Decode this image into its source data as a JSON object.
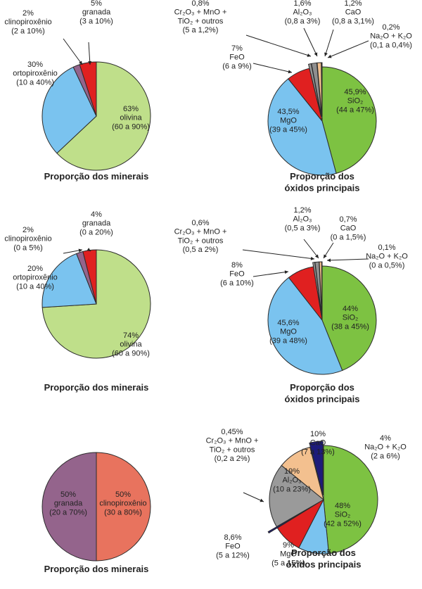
{
  "chart_data": [
    {
      "type": "pie",
      "title": "Proporção dos minerais",
      "colors": [
        "#bfdf8a",
        "#7ac3ef",
        "#94648c",
        "#e02020"
      ],
      "slices": [
        {
          "value": 63,
          "lines": [
            "63%",
            "olivina",
            "(60 a 90%)"
          ]
        },
        {
          "value": 30,
          "lines": [
            "30%",
            "ortopiroxênio",
            "(10 a 40%)"
          ]
        },
        {
          "value": 2,
          "lines": [
            "2%",
            "clinopiroxênio",
            "(2 a 10%)"
          ]
        },
        {
          "value": 5,
          "lines": [
            "5%",
            "granada",
            "(3 a 10%)"
          ]
        }
      ]
    },
    {
      "type": "pie",
      "title": [
        "Proporção dos",
        "óxidos principais"
      ],
      "colors": [
        "#7dc242",
        "#7ac3ef",
        "#e02020",
        "#9a9a9a",
        "#8f8f8f",
        "#f3c08f",
        "#1e1b7a"
      ],
      "slices": [
        {
          "value": 45.9,
          "lines": [
            "45,9%",
            "SiO₂",
            "(44 a 47%)"
          ]
        },
        {
          "value": 43.5,
          "lines": [
            "43,5%",
            "MgO",
            "(39 a 45%)"
          ]
        },
        {
          "value": 7,
          "lines": [
            "7%",
            "FeO",
            "(6 a 9%)"
          ]
        },
        {
          "value": 0.8,
          "lines": [
            "0,8%",
            "Cr₂O₃ + MnO +",
            "TiO₂ + outros",
            "(5 a 1,2%)"
          ]
        },
        {
          "value": 1.6,
          "lines": [
            "1,6%",
            "Al₂O₃",
            "(0,8 a 3%)"
          ]
        },
        {
          "value": 1.2,
          "lines": [
            "1,2%",
            "CaO",
            "(0,8 a 3,1%)"
          ]
        },
        {
          "value": 0.2,
          "lines": [
            "0,2%",
            "Na₂O + K₂O",
            "(0,1 a 0,4%)"
          ]
        }
      ]
    },
    {
      "type": "pie",
      "title": "Proporção dos minerais",
      "colors": [
        "#bfdf8a",
        "#7ac3ef",
        "#94648c",
        "#e02020"
      ],
      "slices": [
        {
          "value": 74,
          "lines": [
            "74%",
            "olivina",
            "(60 a 90%)"
          ]
        },
        {
          "value": 20,
          "lines": [
            "20%",
            "ortopiroxênio",
            "(10 a 40%)"
          ]
        },
        {
          "value": 2,
          "lines": [
            "2%",
            "clinopiroxênio",
            "(0 a 5%)"
          ]
        },
        {
          "value": 4,
          "lines": [
            "4%",
            "granada",
            "(0 a 20%)"
          ]
        }
      ]
    },
    {
      "type": "pie",
      "title": [
        "Proporção dos",
        "óxidos principais"
      ],
      "colors": [
        "#7dc242",
        "#7ac3ef",
        "#e02020",
        "#9a9a9a",
        "#8f8f8f",
        "#f3c08f",
        "#1e1b7a"
      ],
      "slices": [
        {
          "value": 44,
          "lines": [
            "44%",
            "SiO₂",
            "(38 a 45%)"
          ]
        },
        {
          "value": 45.6,
          "lines": [
            "45,6%",
            "MgO",
            "(39 a 48%)"
          ]
        },
        {
          "value": 8,
          "lines": [
            "8%",
            "FeO",
            "(6 a 10%)"
          ]
        },
        {
          "value": 0.6,
          "lines": [
            "0,6%",
            "Cr₂O₃ + MnO +",
            "TiO₂ + outros",
            "(0,5 a 2%)"
          ]
        },
        {
          "value": 1.2,
          "lines": [
            "1,2%",
            "Al₂O₃",
            "(0,5 a 3%)"
          ]
        },
        {
          "value": 0.7,
          "lines": [
            "0,7%",
            "CaO",
            "(0 a 1,5%)"
          ]
        },
        {
          "value": 0.1,
          "lines": [
            "0,1%",
            "Na₂O + K₂O",
            "(0 a 0,5%)"
          ]
        }
      ]
    },
    {
      "type": "pie",
      "title": "Proporção dos minerais",
      "colors": [
        "#e8735e",
        "#94648c"
      ],
      "slices": [
        {
          "value": 50,
          "lines": [
            "50%",
            "granada",
            "(20 a 70%)"
          ]
        },
        {
          "value": 50,
          "lines": [
            "50%",
            "clinopiroxênio",
            "(30 a 80%)"
          ]
        }
      ]
    },
    {
      "type": "pie",
      "title": [
        "Proporção dos",
        "óxidos principais"
      ],
      "colors": [
        "#7dc242",
        "#7ac3ef",
        "#e02020",
        "#1e1b7a",
        "#9a9a9a",
        "#f3c08f",
        "#1e1b7a"
      ],
      "slices": [
        {
          "value": 48,
          "lines": [
            "48%",
            "SiO₂",
            "(42 a 52%)"
          ]
        },
        {
          "value": 9,
          "lines": [
            "9%",
            "MgO",
            "(5 a 15%)"
          ]
        },
        {
          "value": 8.6,
          "lines": [
            "8,6%",
            "FeO",
            "(5 a 12%)"
          ]
        },
        {
          "value": 0.45,
          "lines": [
            "0,45%",
            "Cr₂O₃ + MnO +",
            "TiO₂ + outros",
            "(0,2 a 2%)"
          ]
        },
        {
          "value": 19,
          "lines": [
            "19%",
            "Al₂O₃",
            "(10 a 23%)"
          ]
        },
        {
          "value": 10,
          "lines": [
            "10%",
            "CaO",
            "(7 a 13%)"
          ]
        },
        {
          "value": 4,
          "lines": [
            "4%",
            "Na₂O + K₂O",
            "(2 a 6%)"
          ]
        }
      ]
    }
  ]
}
